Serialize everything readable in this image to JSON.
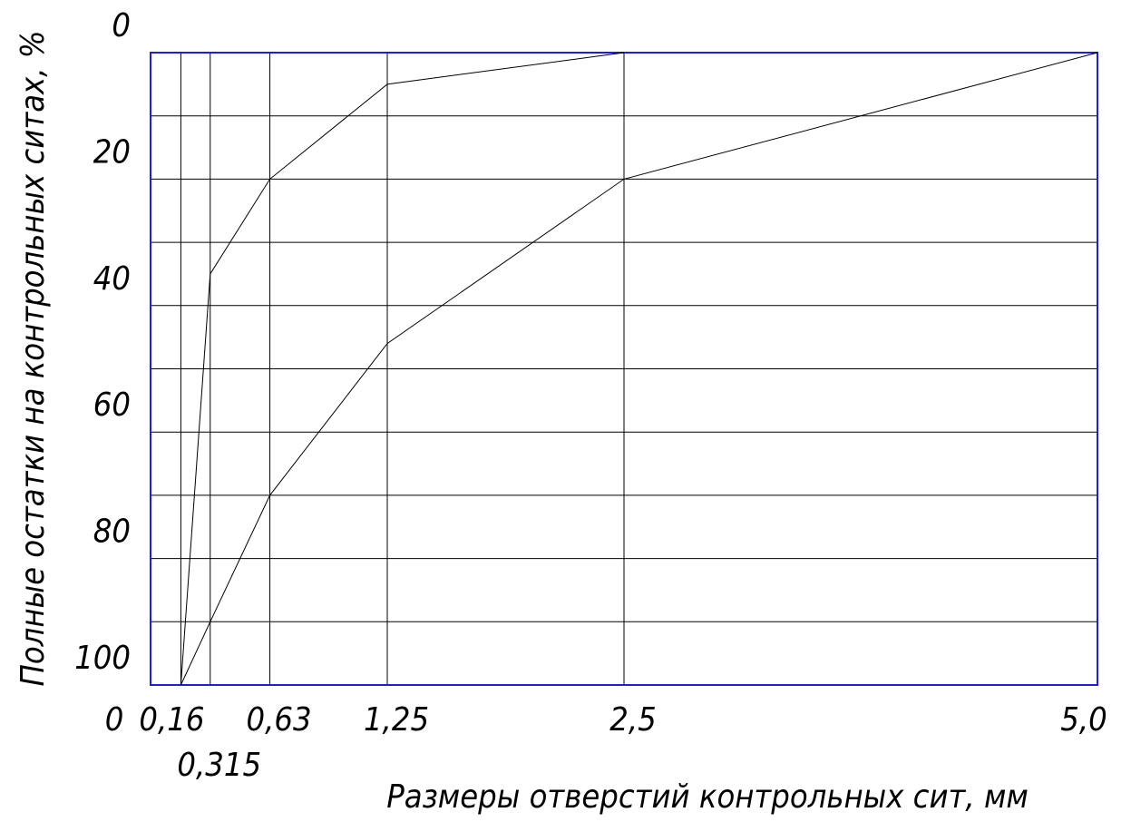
{
  "chart_data": {
    "type": "line",
    "xlabel": "Размеры отверстий контрольных сит, мм",
    "ylabel": "Полные остатки на контрольных ситах, %",
    "xlim": [
      0,
      5.0
    ],
    "xticks": [
      0,
      {
        "value": 0.16,
        "label": "0,16"
      },
      {
        "value": 0.315,
        "label": "0,315"
      },
      {
        "value": 0.63,
        "label": "0,63"
      },
      {
        "value": 1.25,
        "label": "1,25"
      },
      {
        "value": 2.5,
        "label": "2,5"
      },
      {
        "value": 5.0,
        "label": "5,0"
      }
    ],
    "ylim": [
      0,
      100
    ],
    "yticks": [
      0,
      20,
      40,
      60,
      80,
      100
    ],
    "ygrid": [
      10,
      20,
      30,
      40,
      50,
      60,
      70,
      80,
      90
    ],
    "y_inverted": true,
    "frame_color": "#1e1ee0",
    "series": [
      {
        "color": "#000000",
        "x": [
          0.16,
          0.315,
          0.63,
          1.25,
          2.5
        ],
        "values": [
          100,
          35,
          20,
          5,
          0
        ]
      },
      {
        "color": "#000000",
        "x": [
          0.16,
          0.315,
          0.63,
          1.25,
          2.5,
          5.0
        ],
        "values": [
          100,
          90,
          70,
          46,
          20,
          0
        ]
      }
    ]
  }
}
